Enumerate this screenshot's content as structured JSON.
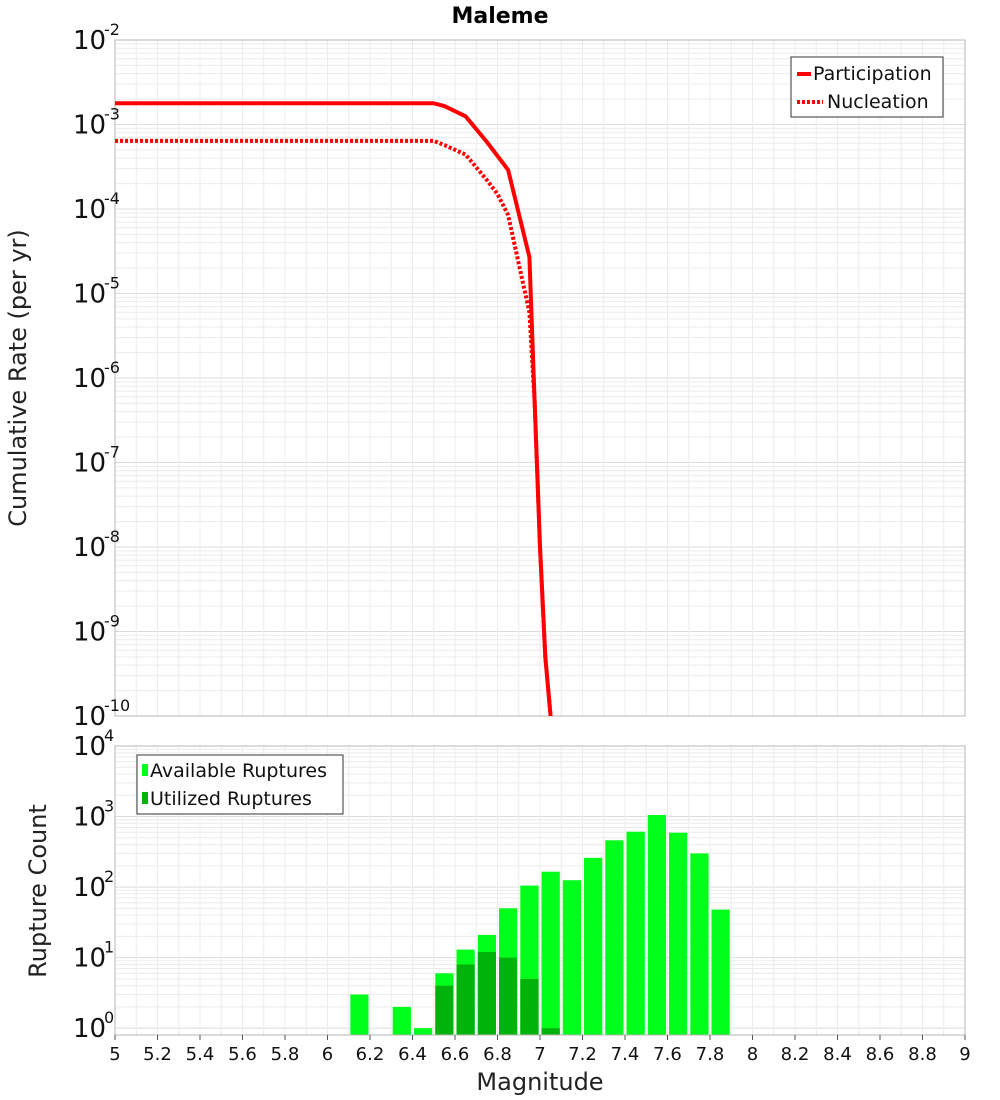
{
  "chart_data": [
    {
      "type": "line",
      "title": "Maleme",
      "xlabel": "Magnitude",
      "ylabel": "Cumulative Rate (per yr)",
      "yscale": "log",
      "xlim": [
        5,
        9
      ],
      "ylim": [
        1e-10,
        0.01
      ],
      "ytick_base": "10",
      "ytick_exponents": [
        "-10",
        "-9",
        "-8",
        "-7",
        "-6",
        "-5",
        "-4",
        "-3",
        "-2"
      ],
      "legend_position": "top-right",
      "series": [
        {
          "name": "Participation",
          "style": "solid",
          "color": "#ff0000",
          "x": [
            5.0,
            5.5,
            6.0,
            6.5,
            6.55,
            6.65,
            6.75,
            6.85,
            6.95,
            6.975,
            7.0,
            7.025,
            7.05
          ],
          "y": [
            0.00178,
            0.00178,
            0.00178,
            0.00178,
            0.00165,
            0.00125,
            0.00062,
            0.00029,
            2.7e-05,
            5e-07,
            1e-08,
            5e-10,
            1e-10
          ]
        },
        {
          "name": "Nucleation",
          "style": "dotted",
          "color": "#ff0000",
          "x": [
            5.0,
            5.5,
            6.0,
            6.5,
            6.55,
            6.65,
            6.75,
            6.8,
            6.85,
            6.95,
            6.975,
            7.0,
            7.025,
            7.05
          ],
          "y": [
            0.00064,
            0.00064,
            0.00064,
            0.00064,
            0.00057,
            0.00044,
            0.00022,
            0.00015,
            8.5e-05,
            6e-06,
            5e-07,
            1e-08,
            5e-10,
            1e-10
          ]
        }
      ]
    },
    {
      "type": "bar",
      "xlabel": "Magnitude",
      "ylabel": "Rupture Count",
      "yscale": "log",
      "xlim": [
        5,
        9
      ],
      "ylim": [
        0.8,
        10000
      ],
      "ytick_base": "10",
      "ytick_exponents": [
        "0",
        "1",
        "2",
        "3",
        "4"
      ],
      "xticks": [
        "5",
        "5.2",
        "5.4",
        "5.6",
        "5.8",
        "6",
        "6.2",
        "6.4",
        "6.6",
        "6.8",
        "7",
        "7.2",
        "7.4",
        "7.6",
        "7.8",
        "8",
        "8.2",
        "8.4",
        "8.6",
        "8.8",
        "9"
      ],
      "legend_position": "top-left",
      "bin_width": 0.1,
      "categories": [
        6.15,
        6.25,
        6.35,
        6.45,
        6.55,
        6.65,
        6.75,
        6.85,
        6.95,
        7.05,
        7.15,
        7.25,
        7.35,
        7.45,
        7.55,
        7.65,
        7.75,
        7.85
      ],
      "series": [
        {
          "name": "Available Ruptures",
          "color": "#00ff1a",
          "values": [
            3,
            0,
            2,
            1,
            6,
            13,
            21,
            50,
            105,
            165,
            125,
            260,
            460,
            610,
            1050,
            590,
            300,
            48
          ]
        },
        {
          "name": "Utilized Ruptures",
          "color": "#00b30a",
          "values": [
            0,
            0,
            0,
            0,
            4,
            8,
            12,
            10,
            5,
            1,
            0,
            0,
            0,
            0,
            0,
            0,
            0,
            0
          ]
        }
      ]
    }
  ]
}
